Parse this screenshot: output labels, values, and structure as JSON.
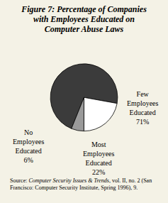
{
  "chart_data": {
    "type": "pie",
    "title": "Figure 7: Percentage of Companies with Employees Educated on Computer Abuse Laws",
    "categories": [
      "Few Employees Educated",
      "Most Employees Educated",
      "No Employees Educated"
    ],
    "values": [
      71,
      22,
      6
    ],
    "value_labels": [
      "71%",
      "22%",
      "6%"
    ],
    "colors": [
      "#3b3b3b",
      "#ffffff",
      "#9a9a9a"
    ],
    "data_labels": true,
    "source": [
      {
        "text": "Source: ",
        "italic": false
      },
      {
        "text": "Computer Security Issues & Trends",
        "italic": true
      },
      {
        "text": ", vol. II, no. 2 (San Francisco: Computer Security Institute, Spring 1996), 9.",
        "italic": false
      }
    ]
  }
}
